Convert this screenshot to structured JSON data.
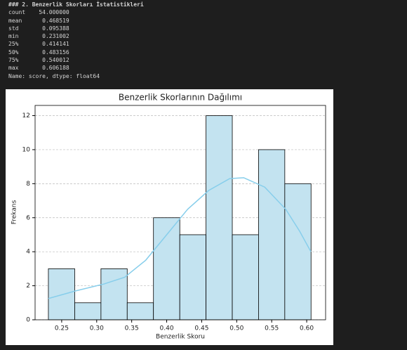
{
  "output": {
    "lines": [
      "### 2. Benzerlik Skorları İstatistikleri",
      "count    54.000000",
      "mean      0.468519",
      "std       0.095388",
      "min       0.231002",
      "25%       0.414141",
      "50%       0.483156",
      "75%       0.540012",
      "max       0.606188",
      "Name: score, dtype: float64"
    ]
  },
  "chart_data": {
    "type": "histogram",
    "title": "Benzerlik Skorlarının Dağılımı",
    "x_label": "Benzerlik Skoru",
    "y_label": "Frekans",
    "bins": [
      0.231,
      0.2686,
      0.3061,
      0.3436,
      0.3811,
      0.4187,
      0.4562,
      0.4937,
      0.5312,
      0.5687,
      0.6062
    ],
    "values": [
      3,
      1,
      3,
      1,
      6,
      5,
      12,
      5,
      10,
      8
    ],
    "color": "#c3e3f0",
    "edge_color": "#000000",
    "kde": {
      "color": "#87ceeb",
      "x": [
        0.231,
        0.27,
        0.31,
        0.34,
        0.37,
        0.4,
        0.43,
        0.46,
        0.49,
        0.51,
        0.54,
        0.57,
        0.59,
        0.606
      ],
      "values": [
        1.25,
        1.7,
        2.1,
        2.5,
        3.5,
        5.0,
        6.5,
        7.6,
        8.3,
        8.35,
        7.8,
        6.5,
        5.2,
        4.0
      ]
    },
    "xlim": [
      0.212,
      0.627
    ],
    "ylim": [
      0,
      12.6
    ],
    "xticks": [
      0.25,
      {
        "value": 0.3,
        "label": "0.30"
      },
      0.35,
      {
        "value": 0.4,
        "label": "0.40"
      },
      0.45,
      {
        "value": 0.5,
        "label": "0.50"
      },
      0.55,
      {
        "value": 0.6,
        "label": "0.60"
      }
    ],
    "yticks": [
      0,
      2,
      4,
      6,
      8,
      10,
      12
    ],
    "grid": true
  }
}
